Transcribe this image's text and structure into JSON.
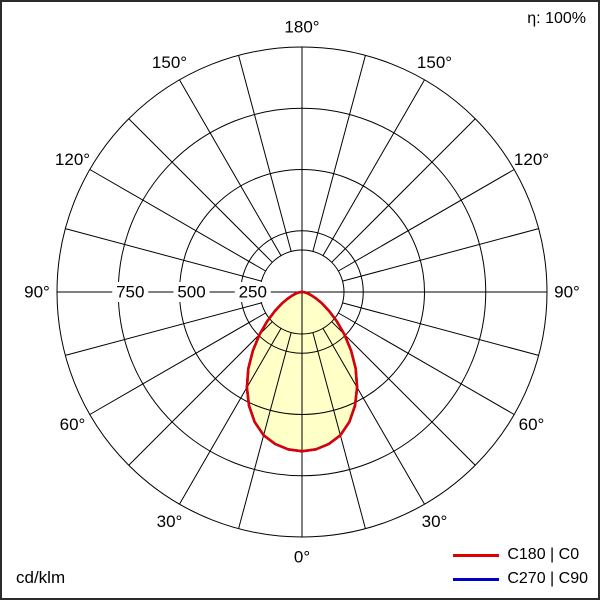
{
  "meta": {
    "efficiency_label": "η: 100%",
    "unit_label": "cd/klm"
  },
  "legend": [
    {
      "label": "C180 | C0",
      "color": "#dd0000"
    },
    {
      "label": "C270 | C90",
      "color": "#0000cc"
    }
  ],
  "chart_data": {
    "type": "polar",
    "unit": "cd/klm",
    "efficiency": "100%",
    "angle_labels_deg": [
      0,
      30,
      60,
      90,
      120,
      150,
      180
    ],
    "grid_step_deg": 15,
    "radial_ticks": [
      250,
      500,
      750
    ],
    "radial_max": 1000,
    "gamma_deg": [
      0,
      5,
      10,
      15,
      20,
      25,
      30,
      35,
      40,
      45,
      50,
      55,
      60,
      65,
      70,
      75,
      80,
      85,
      90
    ],
    "series": [
      {
        "name": "C180 | C0",
        "color": "#dd0000",
        "values": [
          650,
          645,
          630,
          605,
          565,
          512,
          450,
          382,
          312,
          245,
          185,
          135,
          95,
          65,
          42,
          26,
          15,
          8,
          3
        ]
      },
      {
        "name": "C270 | C90",
        "color": "#0000cc",
        "values": [
          650,
          645,
          630,
          605,
          565,
          512,
          450,
          382,
          312,
          245,
          185,
          135,
          95,
          65,
          42,
          26,
          15,
          8,
          3
        ]
      }
    ],
    "fill_color": "#ffffc8"
  }
}
